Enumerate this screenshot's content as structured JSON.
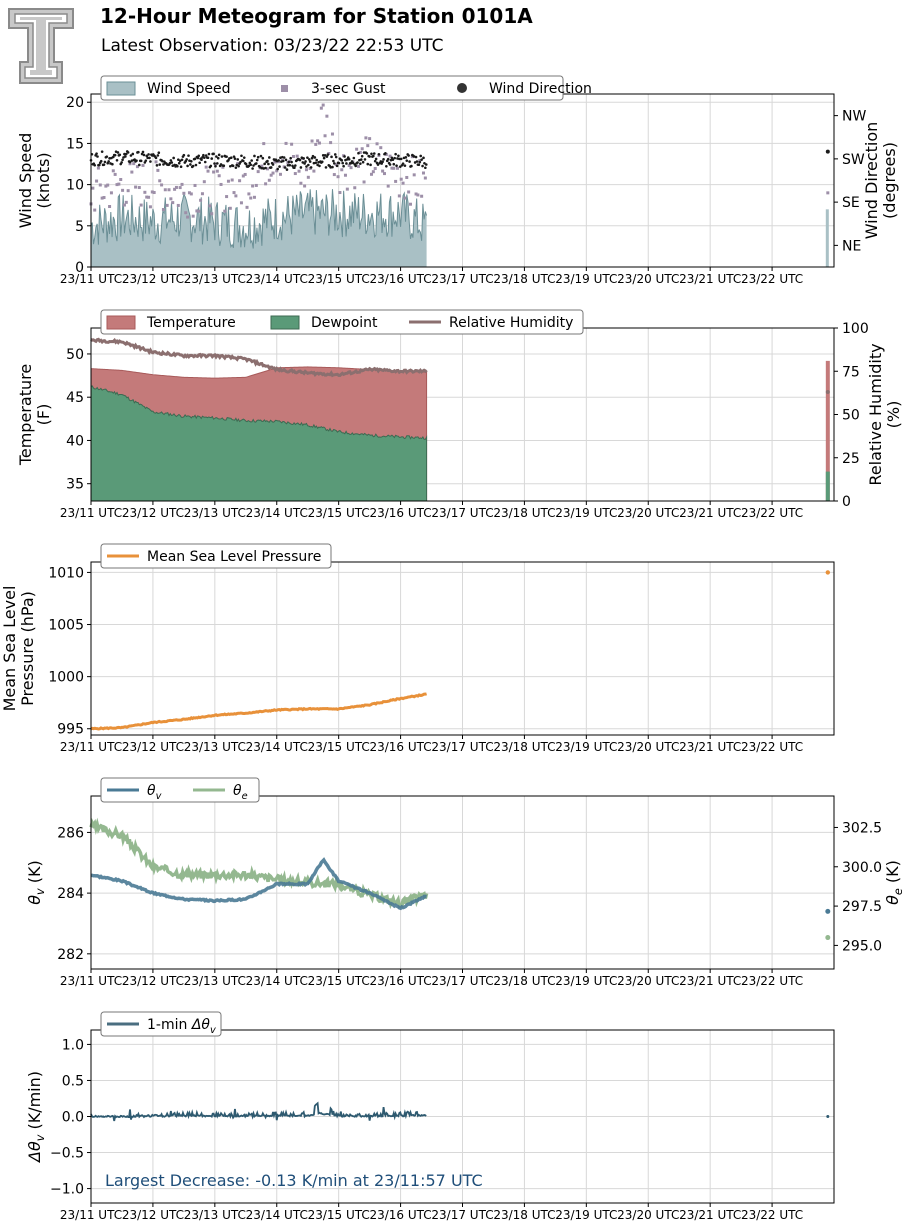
{
  "header": {
    "title": "12-Hour Meteogram for Station 0101A",
    "subtitle": "Latest Observation: 03/23/22 22:53 UTC"
  },
  "time_axis": {
    "ticks": [
      "23/11 UTC",
      "23/12 UTC",
      "23/13 UTC",
      "23/14 UTC",
      "23/15 UTC",
      "23/16 UTC",
      "23/17 UTC",
      "23/18 UTC",
      "23/19 UTC",
      "23/20 UTC",
      "23/21 UTC",
      "23/22 UTC"
    ]
  },
  "colors": {
    "wind_speed": "#a9c0c5",
    "wind_speed_line": "#6b8f96",
    "gust": "#9d8fa8",
    "direction": "#1a1a1a",
    "temperature": "#c47a7a",
    "dewpoint": "#5a9a78",
    "rh": "#8b6f6f",
    "pressure": "#e8913a",
    "theta_v": "#4a7a95",
    "theta_e": "#94b890",
    "dtheta": "#2e5a70",
    "annotation": "#1f4e79"
  },
  "chart_data": [
    {
      "type": "area",
      "ylabel": "Wind Speed\n(knots)",
      "ylabel_right": "Wind Direction\n(degrees)",
      "ylim": [
        0,
        21
      ],
      "yticks": [
        "0",
        "5",
        "10",
        "15",
        "20"
      ],
      "ylim_right": [
        0,
        360
      ],
      "yticks_right": [
        "NE",
        "SE",
        "SW",
        "NW"
      ],
      "legend": [
        "Wind Speed",
        "3-sec Gust",
        "Wind Direction"
      ],
      "grid": true,
      "series": [
        {
          "name": "Wind Speed",
          "x": [
            11.0,
            11.5,
            12.0,
            12.5,
            13.0,
            13.5,
            14.0,
            14.5,
            15.0,
            15.5,
            16.0,
            16.4,
            22.9
          ],
          "values": [
            5,
            6,
            5.5,
            6,
            5.5,
            5,
            6,
            6.5,
            6.5,
            6.5,
            6.5,
            5,
            7
          ]
        },
        {
          "name": "3-sec Gust",
          "x": [
            11.0,
            11.5,
            12.0,
            12.5,
            13.0,
            13.5,
            14.0,
            14.5,
            14.75,
            15.0,
            15.5,
            16.0,
            16.4,
            22.9
          ],
          "values": [
            9,
            10,
            10,
            9,
            9.5,
            10,
            14,
            11,
            18.5,
            12,
            13,
            11,
            10,
            9
          ]
        },
        {
          "name": "Wind Direction",
          "x": [
            11.0,
            11.5,
            12.0,
            12.5,
            13.0,
            13.5,
            14.0,
            14.5,
            15.0,
            15.5,
            16.0,
            16.4,
            22.9
          ],
          "values": [
            225,
            228,
            225,
            220,
            222,
            220,
            215,
            218,
            222,
            225,
            222,
            220,
            240
          ]
        }
      ]
    },
    {
      "type": "area",
      "ylabel": "Temperature\n(F)",
      "ylabel_right": "Relative Humidity\n(%)",
      "ylim": [
        33,
        53
      ],
      "yticks": [
        "35",
        "40",
        "45",
        "50"
      ],
      "ylim_right": [
        0,
        100
      ],
      "yticks_right": [
        "0",
        "25",
        "50",
        "75",
        "100"
      ],
      "legend": [
        "Temperature",
        "Dewpoint",
        "Relative Humidity"
      ],
      "grid": true,
      "series": [
        {
          "name": "Temperature",
          "x": [
            11.0,
            11.5,
            12.0,
            12.5,
            13.0,
            13.5,
            14.0,
            14.5,
            15.0,
            15.5,
            16.0,
            16.4,
            22.9
          ],
          "values": [
            48.3,
            48.1,
            47.6,
            47.3,
            47.2,
            47.3,
            48.4,
            48.5,
            48.4,
            48.2,
            48.0,
            47.9,
            49.2
          ]
        },
        {
          "name": "Dewpoint",
          "x": [
            11.0,
            11.5,
            12.0,
            12.5,
            13.0,
            13.5,
            14.0,
            14.5,
            15.0,
            15.5,
            16.0,
            16.4,
            22.9
          ],
          "values": [
            46.2,
            45.3,
            43.3,
            42.8,
            42.6,
            42.3,
            42.2,
            41.8,
            41.0,
            40.6,
            40.4,
            40.3,
            36.4
          ]
        },
        {
          "name": "Relative Humidity",
          "x": [
            11.0,
            11.5,
            12.0,
            12.5,
            13.0,
            13.5,
            14.0,
            14.5,
            15.0,
            15.5,
            16.0,
            16.4,
            22.9
          ],
          "values": [
            93,
            92,
            86,
            84,
            84,
            82,
            76,
            74,
            73,
            76,
            75,
            75,
            63
          ]
        }
      ]
    },
    {
      "type": "line",
      "ylabel": "Mean Sea Level\nPressure (hPa)",
      "ylim": [
        994.4,
        1011
      ],
      "yticks": [
        "995",
        "1000",
        "1005",
        "1010"
      ],
      "legend": [
        "Mean Sea Level Pressure"
      ],
      "grid": true,
      "series": [
        {
          "name": "Mean Sea Level Pressure",
          "x": [
            11.0,
            11.5,
            12.0,
            12.5,
            13.0,
            13.5,
            14.0,
            14.5,
            15.0,
            15.5,
            16.0,
            16.4,
            22.9
          ],
          "values": [
            995.0,
            995.1,
            995.6,
            995.9,
            996.3,
            996.5,
            996.8,
            996.9,
            996.9,
            997.3,
            997.9,
            998.3,
            1010.0
          ]
        }
      ]
    },
    {
      "type": "line",
      "ylabel": "θv (K)",
      "ylabel_right": "θe (K)",
      "ylim": [
        281.5,
        287.2
      ],
      "yticks": [
        "282",
        "284",
        "286"
      ],
      "ylim_right": [
        293.5,
        304.5
      ],
      "yticks_right": [
        "295.0",
        "297.5",
        "300.0",
        "302.5"
      ],
      "legend": [
        "θv",
        "θe"
      ],
      "grid": true,
      "series": [
        {
          "name": "θv",
          "x": [
            11.0,
            11.5,
            12.0,
            12.5,
            13.0,
            13.5,
            14.0,
            14.5,
            14.75,
            15.0,
            15.5,
            16.0,
            16.4,
            22.9
          ],
          "values": [
            284.6,
            284.4,
            284.0,
            283.8,
            283.75,
            283.8,
            284.3,
            284.3,
            285.1,
            284.4,
            284.0,
            283.5,
            283.9,
            283.4
          ]
        },
        {
          "name": "θe",
          "x": [
            11.0,
            11.5,
            12.0,
            12.5,
            13.0,
            13.5,
            14.0,
            14.5,
            15.0,
            15.5,
            16.0,
            16.4,
            22.9
          ],
          "values": [
            302.6,
            302.0,
            300.0,
            299.5,
            299.5,
            299.5,
            299.2,
            299.0,
            298.9,
            298.2,
            297.7,
            298.2,
            295.5
          ]
        }
      ]
    },
    {
      "type": "line",
      "ylabel": "Δθv (K/min)",
      "ylim": [
        -1.2,
        1.2
      ],
      "yticks": [
        "−1.0",
        "−0.5",
        "0.0",
        "0.5",
        "1.0"
      ],
      "legend": [
        "1-min Δθv"
      ],
      "annotation": "Largest Decrease: -0.13 K/min at 23/11:57 UTC",
      "grid": true,
      "series": [
        {
          "name": "1-min Δθv",
          "x": [
            11.0,
            11.5,
            12.0,
            12.5,
            13.0,
            13.5,
            14.0,
            14.5,
            14.7,
            15.0,
            15.5,
            16.0,
            16.4,
            22.9
          ],
          "values": [
            0.0,
            0.0,
            0.02,
            0.05,
            0.04,
            0.03,
            0.06,
            0.05,
            0.22,
            0.02,
            0.03,
            0.05,
            0.08,
            0.0
          ]
        }
      ]
    }
  ]
}
